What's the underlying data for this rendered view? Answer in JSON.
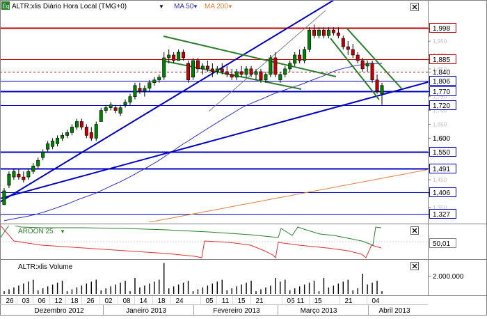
{
  "main_panel": {
    "symbol_badge": "Eq",
    "symbol_label": "ALTR:xlis Diário Hora Local (TMG+0)",
    "ma50_label": "MA 50",
    "ma200_label": "MA 200",
    "price_ticks": [
      "1,950",
      "1,900",
      "1,850",
      "1,800",
      "1,750",
      "1,700",
      "1,650",
      "1,600",
      "1,500",
      "1,450",
      "1,400",
      "1,350"
    ],
    "price_tags": [
      {
        "value": "1,998",
        "color": "#c00000",
        "style": "box"
      },
      {
        "value": "1,885",
        "color": "#c00000",
        "style": "box"
      },
      {
        "value": "1,840",
        "color": "#c00000",
        "style": "plain"
      },
      {
        "value": "1,806",
        "color": "#0000c0",
        "style": "box"
      },
      {
        "value": "1,770",
        "color": "#0000c0",
        "style": "box"
      },
      {
        "value": "1,720",
        "color": "#0000c0",
        "style": "box"
      },
      {
        "value": "1,600",
        "color": "#000000",
        "style": "plain"
      },
      {
        "value": "1,550",
        "color": "#0000c0",
        "style": "box"
      },
      {
        "value": "1,491",
        "color": "#0000c0",
        "style": "box"
      },
      {
        "value": "1,406",
        "color": "#0000c0",
        "style": "box"
      },
      {
        "value": "1,327",
        "color": "#0000c0",
        "style": "box"
      }
    ]
  },
  "aroon_panel": {
    "label": "AROON 25",
    "value_tag": "50,01"
  },
  "volume_panel": {
    "label": "ALTR:xlis Volume",
    "tick_label": "2.000.000"
  },
  "x_axis": {
    "day_labels": [
      "26",
      "03",
      "06",
      "12",
      "18",
      "26",
      "02",
      "08",
      "14",
      "18",
      "24",
      "05",
      "11",
      "15",
      "21",
      "05",
      "11",
      "15",
      "21",
      "04"
    ],
    "month_labels": [
      "Dezembro 2012",
      "Janeiro 2013",
      "Fevereiro 2013",
      "Março 2013",
      "Abril 2013"
    ]
  },
  "colors": {
    "up_candle": "#008000",
    "down_candle": "#c00000",
    "support_resistance_red": "#c00000",
    "support_resistance_blue": "#0000c0",
    "trend_channel_green": "#2a7d2a",
    "ma50": "#3030c0",
    "ma200": "#e08040",
    "aroon_up": "#2a7d2a",
    "aroon_down": "#e03030"
  },
  "chart_data": {
    "type": "candlestick",
    "title": "ALTR:xlis Diário Hora Local (TMG+0)",
    "price_range": [
      1.27,
      2.04
    ],
    "horizontal_levels": [
      1.998,
      1.885,
      1.84,
      1.806,
      1.77,
      1.72,
      1.55,
      1.491,
      1.406,
      1.327
    ],
    "candles": [
      [
        1.36,
        1.42,
        1.36,
        1.41
      ],
      [
        1.43,
        1.48,
        1.42,
        1.47
      ],
      [
        1.46,
        1.49,
        1.45,
        1.48
      ],
      [
        1.47,
        1.49,
        1.45,
        1.46
      ],
      [
        1.46,
        1.48,
        1.44,
        1.45
      ],
      [
        1.46,
        1.49,
        1.45,
        1.48
      ],
      [
        1.48,
        1.51,
        1.47,
        1.5
      ],
      [
        1.5,
        1.53,
        1.49,
        1.52
      ],
      [
        1.53,
        1.56,
        1.52,
        1.55
      ],
      [
        1.56,
        1.59,
        1.55,
        1.58
      ],
      [
        1.57,
        1.6,
        1.56,
        1.59
      ],
      [
        1.58,
        1.61,
        1.57,
        1.6
      ],
      [
        1.6,
        1.62,
        1.59,
        1.61
      ],
      [
        1.61,
        1.63,
        1.6,
        1.62
      ],
      [
        1.62,
        1.65,
        1.61,
        1.64
      ],
      [
        1.64,
        1.67,
        1.63,
        1.66
      ],
      [
        1.66,
        1.67,
        1.63,
        1.64
      ],
      [
        1.64,
        1.65,
        1.6,
        1.61
      ],
      [
        1.62,
        1.64,
        1.59,
        1.6
      ],
      [
        1.6,
        1.66,
        1.59,
        1.65
      ],
      [
        1.66,
        1.71,
        1.66,
        1.7
      ],
      [
        1.7,
        1.72,
        1.69,
        1.71
      ],
      [
        1.71,
        1.73,
        1.7,
        1.72
      ],
      [
        1.71,
        1.72,
        1.69,
        1.7
      ],
      [
        1.69,
        1.72,
        1.68,
        1.71
      ],
      [
        1.72,
        1.74,
        1.71,
        1.73
      ],
      [
        1.73,
        1.76,
        1.72,
        1.75
      ],
      [
        1.75,
        1.8,
        1.74,
        1.79
      ],
      [
        1.78,
        1.8,
        1.76,
        1.77
      ],
      [
        1.77,
        1.79,
        1.75,
        1.78
      ],
      [
        1.78,
        1.81,
        1.77,
        1.8
      ],
      [
        1.8,
        1.82,
        1.79,
        1.81
      ],
      [
        1.81,
        1.83,
        1.8,
        1.82
      ],
      [
        1.82,
        1.91,
        1.81,
        1.89
      ],
      [
        1.89,
        1.92,
        1.87,
        1.9
      ],
      [
        1.9,
        1.91,
        1.87,
        1.88
      ],
      [
        1.88,
        1.92,
        1.88,
        1.91
      ],
      [
        1.91,
        1.92,
        1.88,
        1.89
      ],
      [
        1.87,
        1.88,
        1.8,
        1.81
      ],
      [
        1.82,
        1.89,
        1.81,
        1.88
      ],
      [
        1.88,
        1.89,
        1.84,
        1.85
      ],
      [
        1.85,
        1.87,
        1.83,
        1.86
      ],
      [
        1.86,
        1.88,
        1.84,
        1.85
      ],
      [
        1.85,
        1.87,
        1.82,
        1.84
      ],
      [
        1.84,
        1.86,
        1.83,
        1.85
      ],
      [
        1.85,
        1.87,
        1.83,
        1.84
      ],
      [
        1.84,
        1.86,
        1.82,
        1.83
      ],
      [
        1.83,
        1.85,
        1.81,
        1.82
      ],
      [
        1.82,
        1.85,
        1.81,
        1.84
      ],
      [
        1.84,
        1.86,
        1.82,
        1.83
      ],
      [
        1.83,
        1.86,
        1.82,
        1.85
      ],
      [
        1.85,
        1.86,
        1.82,
        1.83
      ],
      [
        1.83,
        1.85,
        1.81,
        1.84
      ],
      [
        1.84,
        1.85,
        1.8,
        1.81
      ],
      [
        1.81,
        1.84,
        1.8,
        1.83
      ],
      [
        1.83,
        1.9,
        1.82,
        1.89
      ],
      [
        1.89,
        1.91,
        1.82,
        1.83
      ],
      [
        1.81,
        1.84,
        1.8,
        1.83
      ],
      [
        1.83,
        1.86,
        1.82,
        1.85
      ],
      [
        1.85,
        1.88,
        1.84,
        1.87
      ],
      [
        1.87,
        1.91,
        1.86,
        1.9
      ],
      [
        1.9,
        1.92,
        1.87,
        1.88
      ],
      [
        1.88,
        1.93,
        1.87,
        1.92
      ],
      [
        1.92,
        2.0,
        1.91,
        1.99
      ],
      [
        1.99,
        2.01,
        1.96,
        1.97
      ],
      [
        1.97,
        2.0,
        1.96,
        1.99
      ],
      [
        1.99,
        2.0,
        1.96,
        1.97
      ],
      [
        1.97,
        2.0,
        1.96,
        1.99
      ],
      [
        1.99,
        2.0,
        1.97,
        1.98
      ],
      [
        1.98,
        2.0,
        1.96,
        1.97
      ],
      [
        1.96,
        1.97,
        1.92,
        1.93
      ],
      [
        1.93,
        1.95,
        1.9,
        1.92
      ],
      [
        1.92,
        1.94,
        1.89,
        1.9
      ],
      [
        1.9,
        1.91,
        1.87,
        1.88
      ],
      [
        1.88,
        1.89,
        1.84,
        1.85
      ],
      [
        1.86,
        1.88,
        1.84,
        1.87
      ],
      [
        1.87,
        1.88,
        1.8,
        1.81
      ],
      [
        1.81,
        1.83,
        1.76,
        1.77
      ],
      [
        1.76,
        1.8,
        1.72,
        1.79
      ]
    ],
    "volume_scale_max": 3000000,
    "volume_tick": 2000000
  }
}
